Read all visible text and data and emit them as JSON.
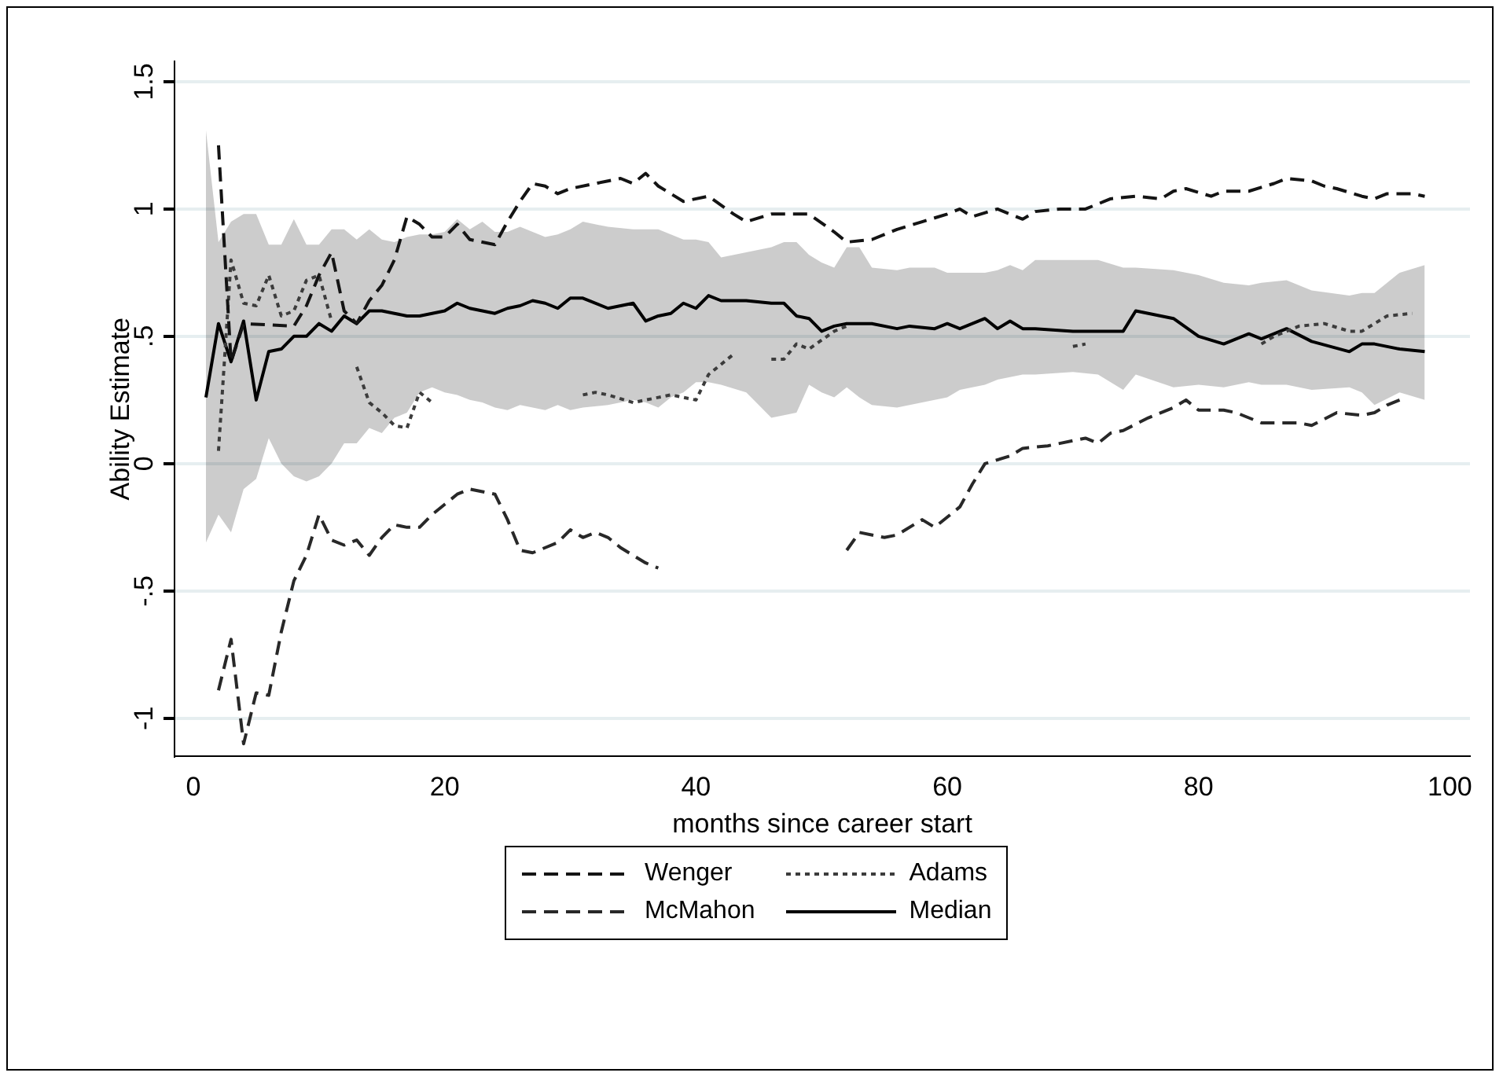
{
  "chart_data": {
    "type": "line",
    "xlabel": "months since career start",
    "ylabel": "Ability Estimate",
    "xlim": [
      -1.5,
      101.6
    ],
    "xticks": [
      0,
      20,
      40,
      60,
      80,
      100
    ],
    "ylim": [
      -1.15,
      1.58
    ],
    "yticks": [
      {
        "value": -1,
        "label": "-1"
      },
      {
        "value": -0.5,
        "label": "-.5"
      },
      0,
      {
        "value": 0.5,
        "label": ".5"
      },
      1,
      1.5
    ],
    "grid": "y",
    "legend": "bottom",
    "marker": "none",
    "series": [
      {
        "name": "Wenger",
        "color": "#141414",
        "line_style": "dashed",
        "x": [
          2,
          3,
          4,
          8,
          9,
          10,
          11,
          12,
          13,
          14,
          15,
          16,
          17,
          18,
          19,
          20,
          21,
          22,
          23,
          24,
          25,
          26,
          27,
          28,
          29,
          30,
          32,
          33,
          34,
          35,
          36,
          37,
          39,
          41,
          43,
          44,
          46,
          49,
          51,
          52,
          54,
          56,
          58,
          60,
          61,
          62,
          64,
          66,
          67,
          69,
          71,
          73,
          75,
          77,
          78,
          79,
          81,
          82,
          84,
          86,
          87,
          89,
          90,
          91,
          93,
          94,
          95,
          97,
          98
        ],
        "values": [
          1.25,
          0.4,
          0.55,
          0.54,
          0.62,
          0.74,
          0.83,
          0.6,
          0.55,
          0.64,
          0.7,
          0.8,
          0.97,
          0.94,
          0.89,
          0.89,
          0.94,
          0.88,
          0.87,
          0.86,
          0.95,
          1.03,
          1.1,
          1.09,
          1.06,
          1.08,
          1.1,
          1.11,
          1.12,
          1.1,
          1.14,
          1.09,
          1.03,
          1.05,
          0.98,
          0.95,
          0.98,
          0.98,
          0.91,
          0.87,
          0.88,
          0.92,
          0.95,
          0.98,
          1.0,
          0.97,
          1.0,
          0.96,
          0.99,
          1.0,
          1.0,
          1.04,
          1.05,
          1.04,
          1.07,
          1.08,
          1.05,
          1.07,
          1.07,
          1.1,
          1.12,
          1.11,
          1.09,
          1.08,
          1.05,
          1.04,
          1.06,
          1.06,
          1.05
        ]
      },
      {
        "name": "McMahon",
        "color": "#282828",
        "line_style": "dashed",
        "x": [
          2,
          3,
          4,
          5,
          6,
          7,
          8,
          9,
          10,
          11,
          12,
          13,
          14,
          15,
          16,
          17,
          18,
          19,
          20,
          21,
          22,
          23,
          24,
          25,
          26,
          27,
          28,
          29,
          30,
          31,
          32,
          33,
          34,
          35,
          36,
          37,
          44,
          52,
          53,
          55,
          56,
          58,
          59,
          61,
          62,
          63,
          65,
          66,
          68,
          70,
          71,
          72,
          73,
          74,
          76,
          78,
          79,
          80,
          82,
          83,
          85,
          86,
          88,
          89,
          91,
          93,
          94,
          95,
          96
        ],
        "values": [
          -0.89,
          -0.69,
          -1.1,
          -0.9,
          -0.91,
          -0.66,
          -0.46,
          -0.36,
          -0.2,
          -0.3,
          -0.32,
          -0.3,
          -0.36,
          -0.29,
          -0.24,
          -0.25,
          -0.25,
          -0.2,
          -0.16,
          -0.12,
          -0.1,
          -0.11,
          -0.12,
          -0.22,
          -0.34,
          -0.35,
          -0.33,
          -0.31,
          -0.26,
          -0.29,
          -0.27,
          -0.29,
          -0.33,
          -0.36,
          -0.39,
          -0.41,
          null,
          -0.34,
          -0.27,
          -0.29,
          -0.28,
          -0.22,
          -0.25,
          -0.17,
          -0.08,
          0.0,
          0.03,
          0.06,
          0.07,
          0.09,
          0.1,
          0.08,
          0.12,
          0.13,
          0.18,
          0.22,
          0.25,
          0.21,
          0.21,
          0.2,
          0.16,
          0.16,
          0.16,
          0.15,
          0.2,
          0.19,
          0.2,
          0.23,
          0.25
        ]
      },
      {
        "name": "Adams",
        "color": "#3c3c3c",
        "line_style": "dotted",
        "x": [
          2,
          3,
          4,
          5,
          6,
          7,
          8,
          9,
          10,
          11,
          12,
          13,
          14,
          15,
          16,
          17,
          18,
          19,
          25,
          31,
          32,
          33,
          35,
          37,
          38,
          40,
          41,
          43,
          44.5,
          46,
          47,
          48,
          49,
          51,
          52,
          60,
          70,
          71,
          77,
          85,
          86,
          88,
          90,
          92,
          93,
          95,
          97
        ],
        "values": [
          0.05,
          0.8,
          0.63,
          0.62,
          0.74,
          0.58,
          0.6,
          0.72,
          0.74,
          0.56,
          null,
          0.38,
          0.24,
          0.2,
          0.15,
          0.14,
          0.28,
          0.24,
          null,
          0.27,
          0.28,
          0.27,
          0.24,
          0.26,
          0.27,
          0.25,
          0.35,
          0.43,
          null,
          0.41,
          0.41,
          0.47,
          0.45,
          0.52,
          0.54,
          null,
          0.46,
          0.47,
          null,
          0.47,
          0.5,
          0.54,
          0.55,
          0.52,
          0.52,
          0.58,
          0.59
        ]
      },
      {
        "name": "Median",
        "color": "#000000",
        "line_style": "solid",
        "x": [
          1,
          2,
          3,
          4,
          5,
          6,
          7,
          8,
          9,
          10,
          11,
          12,
          13,
          14,
          15,
          16,
          17,
          18,
          19,
          20,
          21,
          22,
          23,
          24,
          25,
          26,
          27,
          28,
          29,
          30,
          31,
          33,
          35,
          36,
          37,
          38,
          39,
          40,
          41,
          42,
          44,
          46,
          47,
          48,
          49,
          50,
          51,
          52,
          53,
          54,
          56,
          57,
          59,
          60,
          61,
          63,
          64,
          65,
          66,
          67,
          70,
          72,
          74,
          75,
          78,
          80,
          82,
          84,
          85,
          87,
          89,
          92,
          93,
          94,
          96,
          98
        ],
        "values": [
          0.26,
          0.55,
          0.4,
          0.56,
          0.25,
          0.44,
          0.45,
          0.5,
          0.5,
          0.55,
          0.52,
          0.58,
          0.55,
          0.6,
          0.6,
          0.59,
          0.58,
          0.58,
          0.59,
          0.6,
          0.63,
          0.61,
          0.6,
          0.59,
          0.61,
          0.62,
          0.64,
          0.63,
          0.61,
          0.65,
          0.65,
          0.61,
          0.63,
          0.56,
          0.58,
          0.59,
          0.63,
          0.61,
          0.66,
          0.64,
          0.64,
          0.63,
          0.63,
          0.58,
          0.57,
          0.52,
          0.54,
          0.55,
          0.55,
          0.55,
          0.53,
          0.54,
          0.53,
          0.55,
          0.53,
          0.57,
          0.53,
          0.56,
          0.53,
          0.53,
          0.52,
          0.52,
          0.52,
          0.6,
          0.57,
          0.5,
          0.47,
          0.51,
          0.49,
          0.53,
          0.48,
          0.44,
          0.47,
          0.47,
          0.45,
          0.44
        ],
        "lower": [
          -0.31,
          -0.2,
          -0.27,
          -0.1,
          -0.06,
          0.1,
          0.0,
          -0.05,
          -0.07,
          -0.05,
          0.0,
          0.08,
          0.08,
          0.14,
          0.12,
          0.18,
          0.2,
          0.28,
          0.3,
          0.28,
          0.27,
          0.25,
          0.24,
          0.22,
          0.21,
          0.23,
          0.22,
          0.21,
          0.23,
          0.21,
          0.22,
          0.23,
          0.25,
          0.24,
          0.22,
          0.26,
          0.28,
          0.32,
          0.32,
          0.31,
          0.28,
          0.18,
          0.19,
          0.2,
          0.31,
          0.28,
          0.26,
          0.3,
          0.26,
          0.23,
          0.22,
          0.23,
          0.25,
          0.26,
          0.29,
          0.31,
          0.33,
          0.34,
          0.35,
          0.35,
          0.36,
          0.35,
          0.29,
          0.35,
          0.3,
          0.31,
          0.3,
          0.32,
          0.31,
          0.31,
          0.29,
          0.3,
          0.28,
          0.23,
          0.28,
          0.25
        ],
        "upper": [
          1.31,
          0.87,
          0.95,
          0.98,
          0.98,
          0.86,
          0.86,
          0.96,
          0.86,
          0.86,
          0.92,
          0.92,
          0.88,
          0.92,
          0.88,
          0.87,
          0.89,
          0.9,
          0.9,
          0.91,
          0.96,
          0.92,
          0.95,
          0.91,
          0.91,
          0.93,
          0.91,
          0.89,
          0.9,
          0.92,
          0.95,
          0.93,
          0.92,
          0.92,
          0.92,
          0.9,
          0.88,
          0.88,
          0.87,
          0.81,
          0.83,
          0.85,
          0.87,
          0.87,
          0.82,
          0.79,
          0.77,
          0.85,
          0.85,
          0.77,
          0.76,
          0.77,
          0.77,
          0.75,
          0.75,
          0.75,
          0.76,
          0.78,
          0.76,
          0.8,
          0.8,
          0.8,
          0.77,
          0.77,
          0.76,
          0.74,
          0.71,
          0.7,
          0.71,
          0.72,
          0.68,
          0.66,
          0.67,
          0.67,
          0.75,
          0.78
        ]
      }
    ]
  }
}
